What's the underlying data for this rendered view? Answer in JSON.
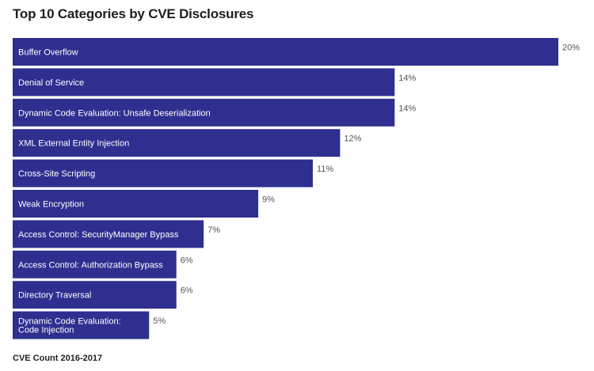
{
  "chart_data": {
    "type": "bar",
    "orientation": "horizontal",
    "title": "Top 10 Categories by CVE Disclosures",
    "footer": "CVE Count 2016-2017",
    "categories": [
      "Buffer Overflow",
      "Denial of Service",
      "Dynamic Code Evaluation: Unsafe Deserialization",
      "XML External Entity Injection",
      "Cross-Site Scripting",
      "Weak Encryption",
      "Access Control: SecurityManager Bypass",
      "Access Control: Authorization Bypass",
      "Directory Traversal",
      "Dynamic Code Evaluation:\nCode Injection"
    ],
    "values": [
      20,
      14,
      14,
      12,
      11,
      9,
      7,
      6,
      6,
      5
    ],
    "value_labels": [
      "20%",
      "14%",
      "14%",
      "12%",
      "11%",
      "9%",
      "7%",
      "6%",
      "6%",
      "5%"
    ],
    "bar_color": "#2e2f8f",
    "xlim": [
      0,
      20
    ],
    "grid": false,
    "legend": "none"
  }
}
